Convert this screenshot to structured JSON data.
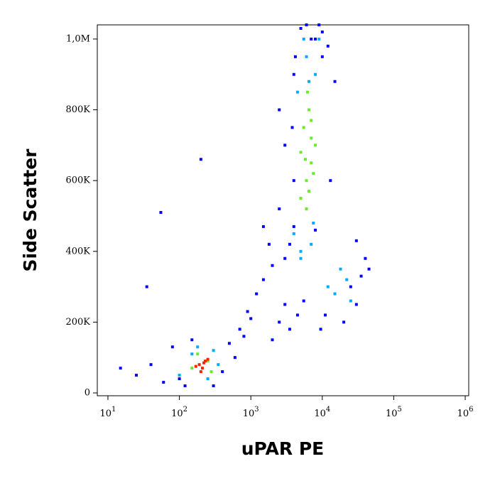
{
  "chart_data": {
    "type": "scatter",
    "x_label": "uPAR PE",
    "y_label": "Side Scatter",
    "xlog": true,
    "xlim": [
      7.1,
      1120000
    ],
    "ylim": [
      -8000,
      1040000
    ],
    "xticks": [
      {
        "value": 10,
        "label": "10",
        "sup": "1"
      },
      {
        "value": 100,
        "label": "10",
        "sup": "2"
      },
      {
        "value": 1000,
        "label": "10",
        "sup": "3"
      },
      {
        "value": 10000,
        "label": "10",
        "sup": "4"
      },
      {
        "value": 100000,
        "label": "10",
        "sup": "5"
      },
      {
        "value": 1000000,
        "label": "10",
        "sup": "6"
      }
    ],
    "yticks": [
      0,
      {
        "value": 200000,
        "label": "200K"
      },
      {
        "value": 400000,
        "label": "400K"
      },
      {
        "value": 600000,
        "label": "600K"
      },
      {
        "value": 800000,
        "label": "800K"
      },
      {
        "value": 1000000,
        "label": "1,0M"
      }
    ],
    "series": [
      {
        "color": "#0000ff",
        "x": [
          15,
          25,
          40,
          60,
          80,
          100,
          120,
          150,
          300,
          400,
          500,
          600,
          700,
          900,
          1200,
          1500,
          2000,
          2500,
          3000,
          1800,
          800,
          1000,
          1500,
          2500,
          3000,
          3500,
          4000,
          2500,
          3000,
          4000,
          8000,
          10000,
          12000,
          15000,
          25000,
          30000,
          35000,
          40000,
          45000,
          30000,
          5000,
          6000,
          7000,
          9000,
          4000,
          3500,
          4500,
          5500,
          11000,
          9500,
          3800,
          4200,
          20000,
          8000,
          200,
          55,
          35,
          2000,
          10000,
          13000
        ],
        "values": [
          70000,
          50000,
          80000,
          30000,
          130000,
          40000,
          20000,
          150000,
          20000,
          60000,
          140000,
          100000,
          180000,
          230000,
          280000,
          320000,
          360000,
          200000,
          250000,
          420000,
          160000,
          210000,
          470000,
          520000,
          380000,
          420000,
          900000,
          800000,
          700000,
          600000,
          1000000,
          950000,
          980000,
          880000,
          300000,
          250000,
          330000,
          380000,
          350000,
          430000,
          1030000,
          1040000,
          1000000,
          1040000,
          470000,
          180000,
          220000,
          260000,
          220000,
          180000,
          750000,
          950000,
          200000,
          460000,
          660000,
          510000,
          300000,
          150000,
          1020000,
          600000
        ]
      },
      {
        "color": "#00aaff",
        "x": [
          100,
          150,
          250,
          300,
          350,
          180,
          4000,
          5000,
          7000,
          8000,
          4500,
          6000,
          9000,
          5000,
          7500,
          15000,
          18000,
          22000,
          25000,
          12000,
          6500,
          5500
        ],
        "values": [
          50000,
          110000,
          40000,
          120000,
          80000,
          130000,
          450000,
          400000,
          420000,
          900000,
          850000,
          950000,
          1000000,
          380000,
          480000,
          280000,
          350000,
          320000,
          260000,
          300000,
          880000,
          1000000
        ]
      },
      {
        "color": "#66ee22",
        "x": [
          5000,
          6000,
          7000,
          8000,
          5500,
          6500,
          7500,
          6000,
          5000,
          7000,
          6500,
          5800,
          150,
          250,
          180,
          280,
          7000,
          6200
        ],
        "values": [
          550000,
          600000,
          650000,
          700000,
          750000,
          800000,
          620000,
          520000,
          680000,
          720000,
          570000,
          660000,
          70000,
          90000,
          110000,
          60000,
          770000,
          850000
        ]
      },
      {
        "color": "#ff2000",
        "x": [
          190,
          210,
          230,
          170,
          250,
          200,
          220
        ],
        "values": [
          80000,
          70000,
          90000,
          75000,
          95000,
          60000,
          85000
        ]
      }
    ]
  }
}
